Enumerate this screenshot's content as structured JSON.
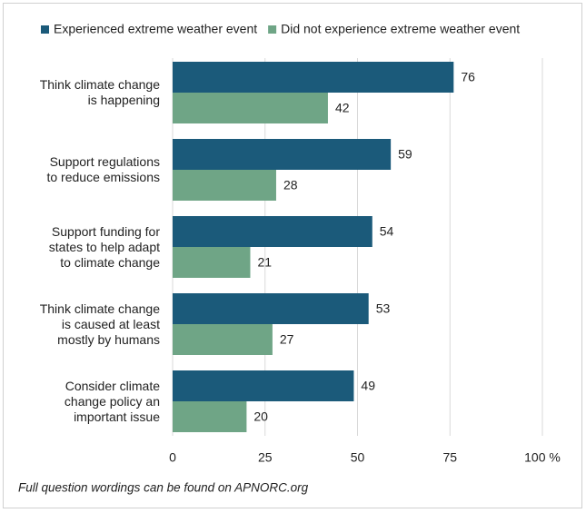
{
  "chart_data": {
    "type": "hbar",
    "categories": [
      "Think climate change\nis happening",
      "Support regulations\nto reduce emissions",
      "Support funding for\nstates to help adapt\nto climate change",
      "Think climate change\nis caused at least\nmostly by humans",
      "Consider climate\nchange policy an\nimportant issue"
    ],
    "series": [
      {
        "name": "Experienced extreme weather event",
        "color": "#1b5a7a",
        "values": [
          76,
          59,
          54,
          53,
          49
        ]
      },
      {
        "name": "Did not experience extreme weather event",
        "color": "#6fa586",
        "values": [
          42,
          28,
          21,
          27,
          20
        ]
      }
    ],
    "xlim": [
      0,
      100
    ],
    "xticks": [
      0,
      25,
      50,
      75,
      {
        "value": 100,
        "label": "100 %"
      }
    ],
    "grid": true,
    "legend": "top",
    "note": "Full question wordings can be found on APNORC.org"
  }
}
